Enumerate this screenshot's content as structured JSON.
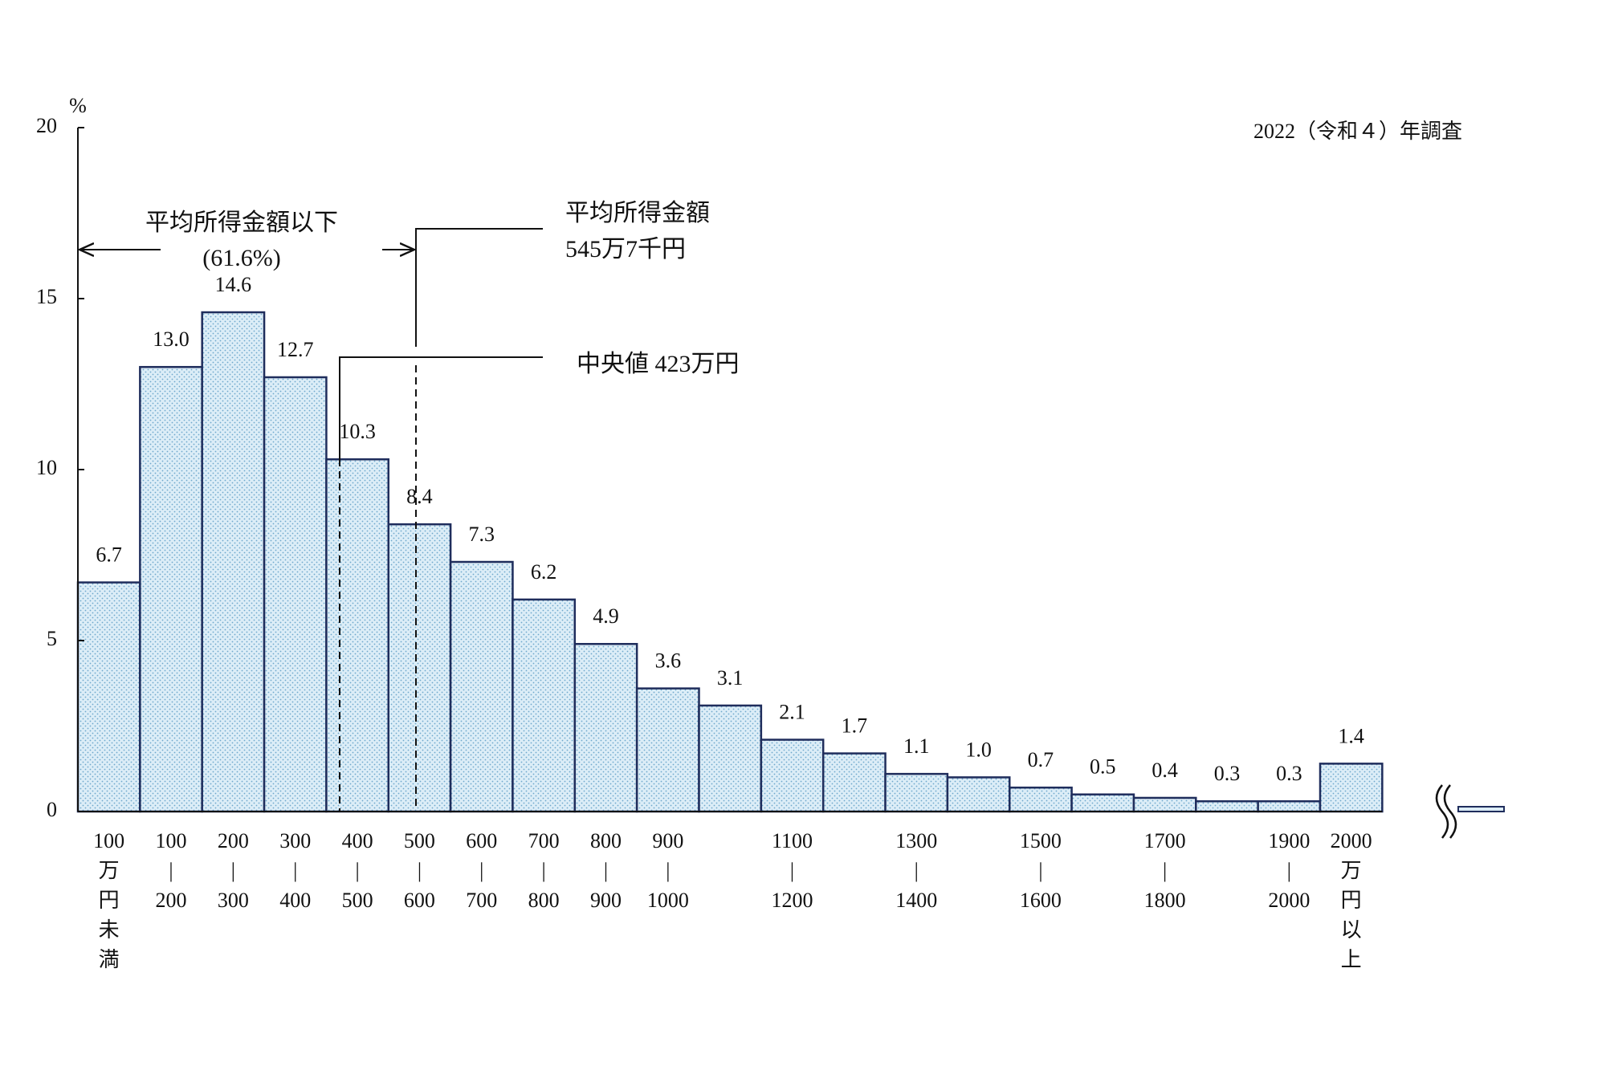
{
  "chart_data": {
    "type": "bar",
    "y_label": "%",
    "subtitle": "2022（令和４）年調査",
    "annotations": {
      "below_mean": "平均所得金額以下",
      "below_mean_share": "(61.6%)",
      "mean": "平均所得金額",
      "mean_value": "545万7千円",
      "median": "中央値 423万円"
    },
    "categories": [
      "100\n万\n円\n未\n満",
      "100\n|\n200",
      "200\n|\n300",
      "300\n|\n400",
      "400\n|\n500",
      "500\n|\n600",
      "600\n|\n700",
      "700\n|\n800",
      "800\n|\n900",
      "900\n|\n1000",
      null,
      "1100\n|\n1200",
      null,
      "1300\n|\n1400",
      null,
      "1500\n|\n1600",
      null,
      "1700\n|\n1800",
      null,
      "1900\n|\n2000",
      "2000\n万\n円\n以\n上"
    ],
    "values": [
      6.7,
      13.0,
      14.6,
      12.7,
      10.3,
      8.4,
      7.3,
      6.2,
      4.9,
      3.6,
      3.1,
      2.1,
      1.7,
      1.1,
      1.0,
      0.7,
      0.5,
      0.4,
      0.3,
      0.3,
      1.4
    ],
    "value_labels": [
      "6.7",
      "13.0",
      "14.6",
      "12.7",
      "10.3",
      "8.4",
      "7.3",
      "6.2",
      "4.9",
      "3.6",
      "3.1",
      "2.1",
      "1.7",
      "1.1",
      "1.0",
      "0.7",
      "0.5",
      "0.4",
      "0.3",
      "0.3",
      "1.4"
    ],
    "color": "#dcedf7",
    "ylim": [
      0,
      20
    ],
    "yticks": [
      0,
      5,
      10,
      15,
      20
    ],
    "grid": false
  }
}
